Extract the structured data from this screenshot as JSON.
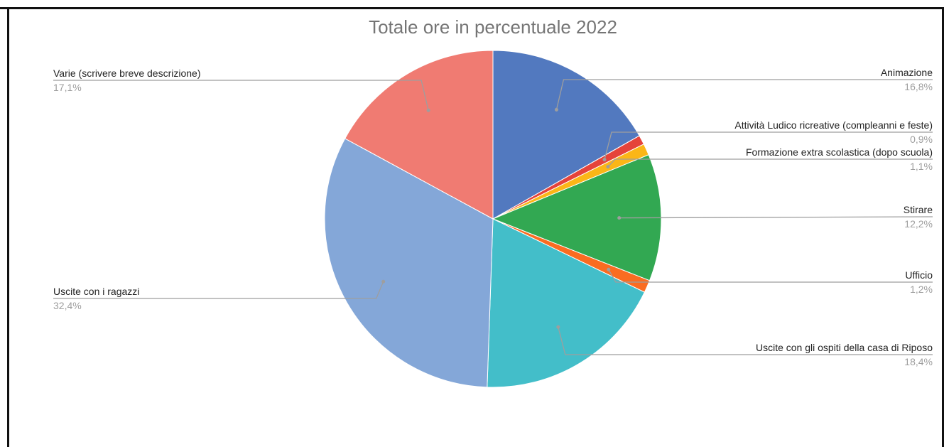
{
  "chart_data": {
    "type": "pie",
    "title": "Totale ore in percentuale 2022",
    "slices": [
      {
        "label": "Animazione",
        "value": 16.8,
        "display": "16,8%",
        "color": "#5279bf"
      },
      {
        "label": "Attività Ludico ricreative (compleanni e feste)",
        "value": 0.9,
        "display": "0,9%",
        "color": "#e5433a"
      },
      {
        "label": "Formazione extra scolastica (dopo scuola)",
        "value": 1.1,
        "display": "1,1%",
        "color": "#fbb617"
      },
      {
        "label": "Stirare",
        "value": 12.2,
        "display": "12,2%",
        "color": "#32a852"
      },
      {
        "label": "Ufficio",
        "value": 1.2,
        "display": "1,2%",
        "color": "#fa6c21"
      },
      {
        "label": "Uscite con gli ospiti della casa di Riposo",
        "value": 18.4,
        "display": "18,4%",
        "color": "#43bec9"
      },
      {
        "label": "Uscite con i ragazzi",
        "value": 32.4,
        "display": "32,4%",
        "color": "#84a7d8"
      },
      {
        "label": "Varie (scrivere breve descrizione)",
        "value": 17.1,
        "display": "17,1%",
        "color": "#f07b72"
      }
    ],
    "start_angle": "top",
    "direction": "clockwise",
    "legend": "none",
    "label_placement": "outside-with-leader-lines"
  }
}
